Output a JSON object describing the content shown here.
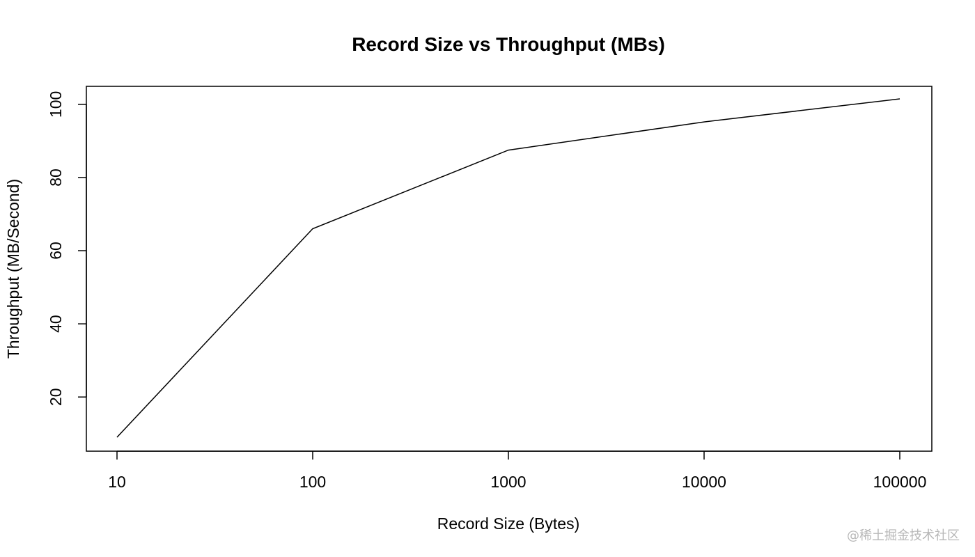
{
  "chart_data": {
    "type": "line",
    "title": "Record Size vs Throughput (MBs)",
    "xlabel": "Record Size (Bytes)",
    "ylabel": "Throughput (MB/Second)",
    "x_scale": "log",
    "x": [
      10,
      100,
      1000,
      10000,
      100000
    ],
    "x_tick_labels": [
      "10",
      "100",
      "1000",
      "10000",
      "100000"
    ],
    "y_ticks": [
      20,
      40,
      60,
      80,
      100
    ],
    "xlim": [
      10,
      100000
    ],
    "ylim": [
      9,
      101.5
    ],
    "grid": false,
    "series": [
      {
        "values": [
          9,
          66,
          87.5,
          95.2,
          101.5
        ],
        "color": "#000000"
      }
    ]
  },
  "watermark": "@稀土掘金技术社区"
}
